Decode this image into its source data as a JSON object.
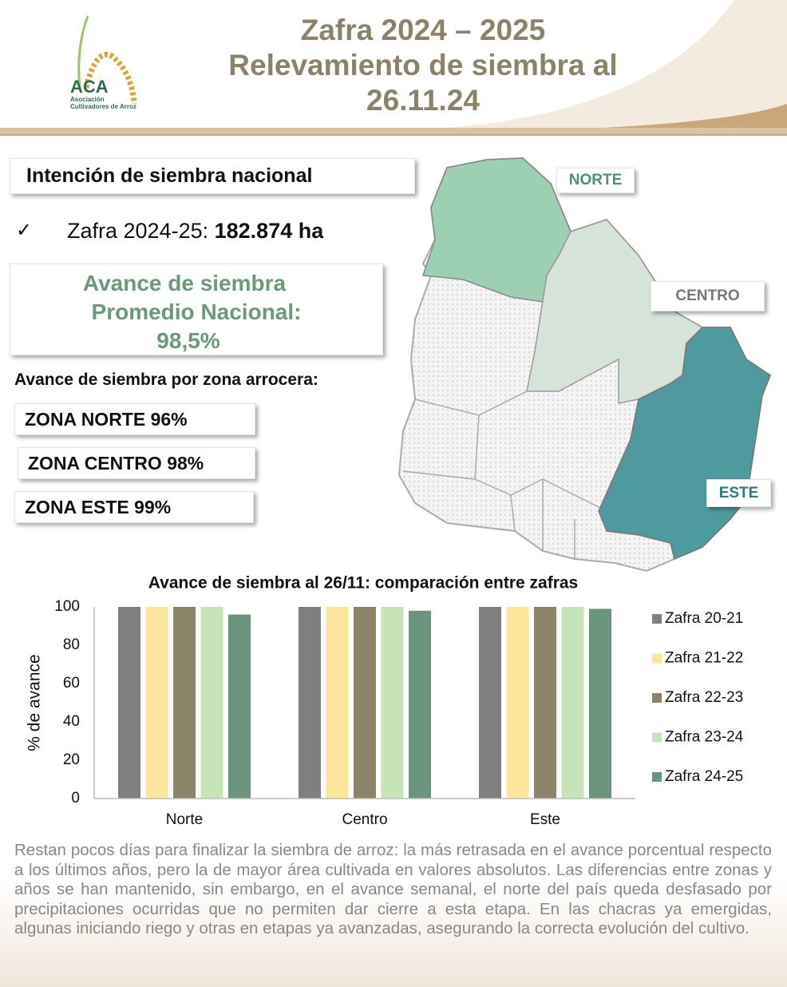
{
  "header": {
    "title_lines": [
      "Zafra 2024 – 2025",
      "Relevamiento de siembra al",
      "26.11.24"
    ],
    "logo": {
      "acronym": "ACA",
      "name_lines": [
        "Asociación",
        "Cultivadores de Arroz"
      ]
    }
  },
  "summary": {
    "heading": "Intención de siembra nacional",
    "check": "✓",
    "crop_label": "Zafra 2024-25:",
    "crop_area": "182.874 ha",
    "avance_lines": [
      "Avance de siembra",
      "Promedio Nacional:",
      "98,5%"
    ],
    "zones_heading": "Avance de siembra por zona arrocera:",
    "zones": [
      "ZONA NORTE 96%",
      "ZONA CENTRO 98%",
      "ZONA ESTE 99%"
    ]
  },
  "map": {
    "labels": [
      "NORTE",
      "CENTRO",
      "ESTE"
    ]
  },
  "chart_data": {
    "type": "bar",
    "title": "Avance de siembra al 26/11: comparación entre zafras",
    "y_label": "% de avance",
    "categories": [
      "Norte",
      "Centro",
      "Este"
    ],
    "series": [
      {
        "name": "Zafra 20-21",
        "color": "#7f7f7f",
        "values": [
          100,
          100,
          100
        ]
      },
      {
        "name": "Zafra 21-22",
        "color": "#fde59b",
        "values": [
          100,
          100,
          100
        ]
      },
      {
        "name": "Zafra 22-23",
        "color": "#8b8468",
        "values": [
          100,
          100,
          100
        ]
      },
      {
        "name": "Zafra 23-24",
        "color": "#c7e4b9",
        "values": [
          100,
          100,
          100
        ]
      },
      {
        "name": "Zafra 24-25",
        "color": "#6a957c",
        "values": [
          96,
          98,
          99
        ]
      }
    ],
    "ylim": [
      0,
      100
    ],
    "yticks": [
      0,
      20,
      40,
      60,
      80,
      100
    ],
    "grid": false,
    "legend": "right"
  },
  "footer": {
    "text": "Restan pocos días para finalizar la siembra de arroz: la más retrasada en el avance porcentual respecto a los últimos años, pero la de mayor área cultivada en valores absolutos. Las diferencias entre zonas y años se han mantenido, sin embargo, en el avance semanal, el norte del país queda desfasado por precipitaciones ocurridas que no permiten dar cierre a esta etapa. En las chacras ya emergidas, algunas iniciando riego y otras en etapas ya avanzadas, asegurando la correcta evolución del cultivo."
  }
}
